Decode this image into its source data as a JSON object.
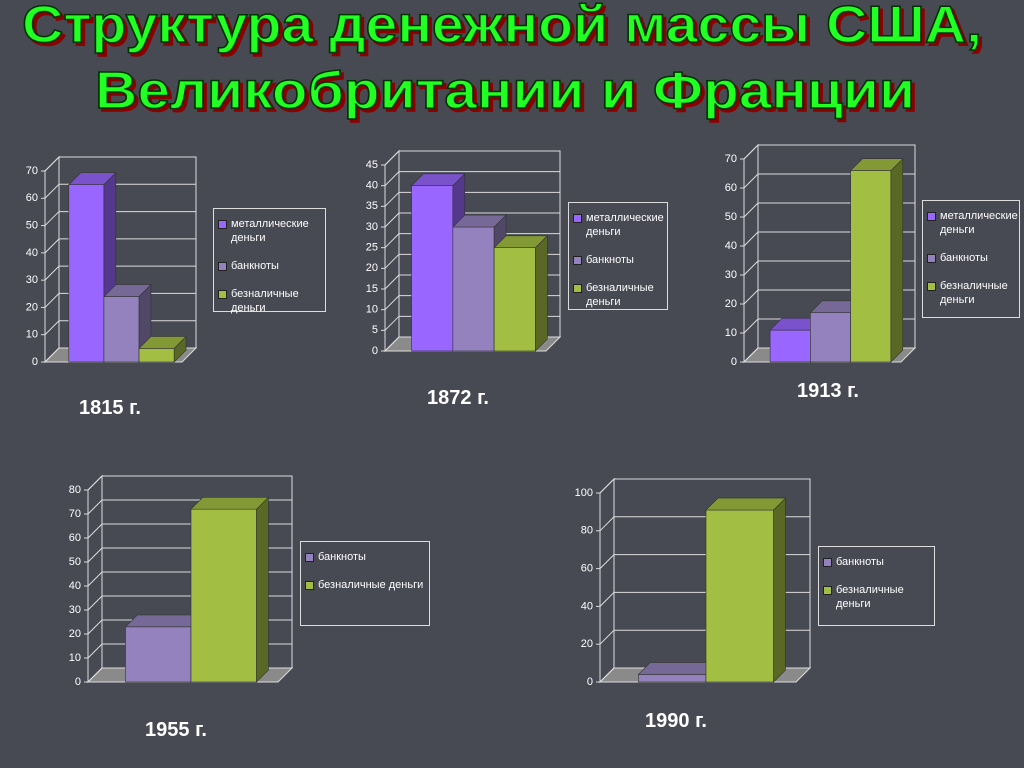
{
  "title": [
    "Структура денежной массы США,",
    "Великобритании и Франции"
  ],
  "chart_data": [
    {
      "type": "bar",
      "title": "1815 г.",
      "categories": [
        null
      ],
      "ylim": [
        0,
        70
      ],
      "yticks": [
        0,
        10,
        20,
        30,
        40,
        50,
        60,
        70
      ],
      "series": [
        {
          "name": "металлические деньги",
          "color": "#9966ff",
          "values": [
            65
          ]
        },
        {
          "name": "банкноты",
          "color": "#9382bd",
          "values": [
            24
          ]
        },
        {
          "name": "безналичные деньги",
          "color": "#a2bf44",
          "values": [
            5
          ]
        }
      ]
    },
    {
      "type": "bar",
      "title": "1872 г.",
      "categories": [
        null
      ],
      "ylim": [
        0,
        45
      ],
      "yticks": [
        0,
        5,
        10,
        15,
        20,
        25,
        30,
        35,
        40,
        45
      ],
      "series": [
        {
          "name": "металлические деньги",
          "color": "#9966ff",
          "values": [
            40
          ]
        },
        {
          "name": "банкноты",
          "color": "#9382bd",
          "values": [
            30
          ]
        },
        {
          "name": "безналичные деньги",
          "color": "#a2bf44",
          "values": [
            25
          ]
        }
      ]
    },
    {
      "type": "bar",
      "title": "1913 г.",
      "categories": [
        null
      ],
      "ylim": [
        0,
        70
      ],
      "yticks": [
        0,
        10,
        20,
        30,
        40,
        50,
        60,
        70
      ],
      "series": [
        {
          "name": "металлические деньги",
          "color": "#9966ff",
          "values": [
            11
          ]
        },
        {
          "name": "банкноты",
          "color": "#9382bd",
          "values": [
            17
          ]
        },
        {
          "name": "безналичные деньги",
          "color": "#a2bf44",
          "values": [
            66
          ]
        }
      ]
    },
    {
      "type": "bar",
      "title": "1955 г.",
      "categories": [
        null
      ],
      "ylim": [
        0,
        80
      ],
      "yticks": [
        0,
        10,
        20,
        30,
        40,
        50,
        60,
        70,
        80
      ],
      "series": [
        {
          "name": "банкноты",
          "color": "#9382bd",
          "values": [
            23
          ]
        },
        {
          "name": "безналичные деньги",
          "color": "#a2bf44",
          "values": [
            72
          ]
        }
      ]
    },
    {
      "type": "bar",
      "title": "1990 г.",
      "categories": [
        null
      ],
      "ylim": [
        0,
        100
      ],
      "yticks": [
        0,
        20,
        40,
        60,
        80,
        100
      ],
      "series": [
        {
          "name": "банкноты",
          "color": "#9382bd",
          "values": [
            4
          ]
        },
        {
          "name": "безналичные деньги",
          "color": "#a2bf44",
          "values": [
            91
          ]
        }
      ]
    }
  ]
}
